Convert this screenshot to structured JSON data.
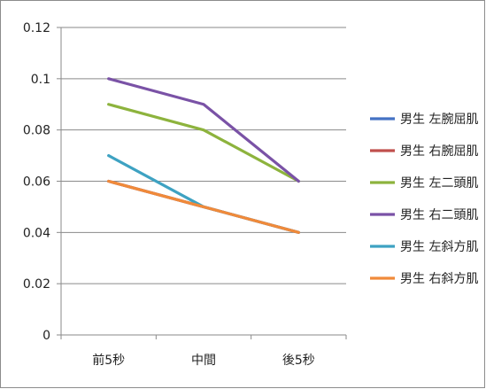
{
  "chart_data": {
    "type": "line",
    "categories": [
      "前5秒",
      "中間",
      "後5秒"
    ],
    "ylim": [
      0,
      0.12
    ],
    "yticks": [
      "0",
      "0.02",
      "0.04",
      "0.06",
      "0.08",
      "0.1",
      "0.12"
    ],
    "grid": true,
    "legend_position": "right",
    "series": [
      {
        "name": "男生 左腕屈肌",
        "color": "#4472c4",
        "values": [
          0.06,
          0.05,
          0.04
        ]
      },
      {
        "name": "男生 右腕屈肌",
        "color": "#c0504d",
        "values": [
          0.06,
          0.05,
          0.04
        ]
      },
      {
        "name": "男生 左二頭肌",
        "color": "#8db33d",
        "values": [
          0.09,
          0.08,
          0.06
        ]
      },
      {
        "name": "男生 右二頭肌",
        "color": "#7a52a6",
        "values": [
          0.1,
          0.09,
          0.06
        ]
      },
      {
        "name": "男生 左斜方肌",
        "color": "#3ea2c2",
        "values": [
          0.07,
          0.05,
          0.04
        ]
      },
      {
        "name": "男生 右斜方肌",
        "color": "#f08a3a",
        "values": [
          0.06,
          0.05,
          0.04
        ]
      }
    ]
  }
}
